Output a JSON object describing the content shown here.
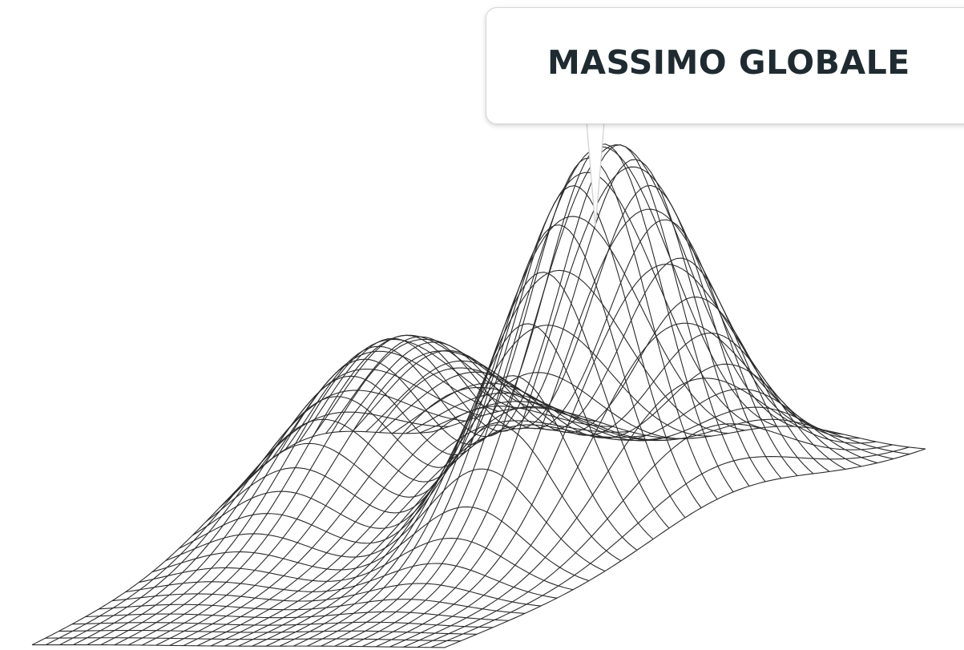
{
  "annotation": {
    "label": "MASSIMO GLOBALE"
  },
  "colors": {
    "mesh_line": "#2a2a2a",
    "label_text": "#1f2b30",
    "callout_border": "#d6d6d6",
    "background": "#ffffff"
  }
}
